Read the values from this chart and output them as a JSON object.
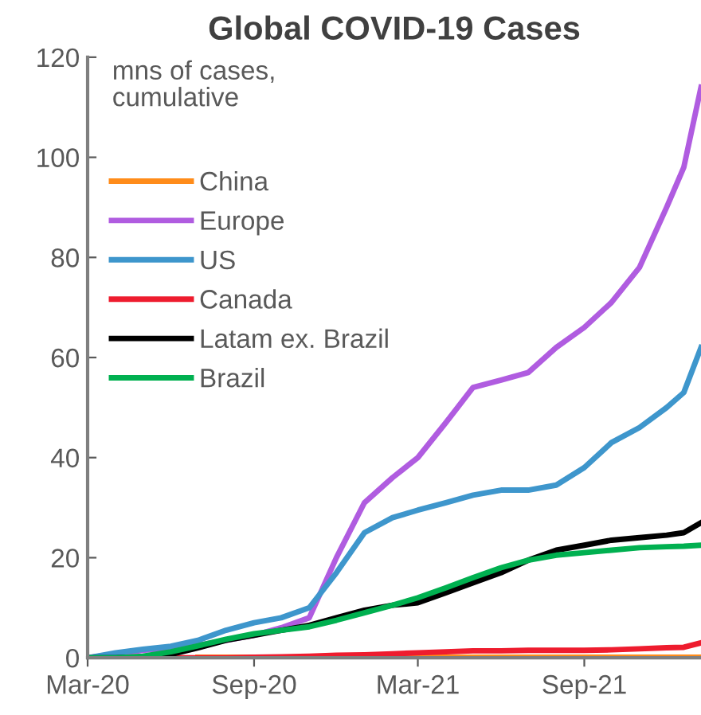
{
  "chart_data": {
    "type": "line",
    "title": "Global COVID-19 Cases",
    "ylabel": "mns of cases,\ncumulative",
    "x": [
      "2020-03-01",
      "2020-04-01",
      "2020-05-01",
      "2020-06-01",
      "2020-07-01",
      "2020-08-01",
      "2020-09-01",
      "2020-10-01",
      "2020-11-01",
      "2020-12-01",
      "2021-01-01",
      "2021-02-01",
      "2021-03-01",
      "2021-04-01",
      "2021-05-01",
      "2021-06-01",
      "2021-07-01",
      "2021-08-01",
      "2021-09-01",
      "2021-10-01",
      "2021-11-01",
      "2021-12-01",
      "2021-12-20",
      "2022-01-08"
    ],
    "series": [
      {
        "name": "China",
        "color": "#ff8c1a",
        "values": [
          null,
          null,
          null,
          null,
          0.1,
          0.1,
          0.1,
          0.1,
          0.1,
          0.1,
          0.1,
          0.1,
          0.1,
          0.1,
          0.1,
          0.1,
          0.1,
          0.1,
          0.1,
          0.1,
          0.1,
          0.1,
          0.1,
          0.1
        ]
      },
      {
        "name": "Europe",
        "color": "#b05ce0",
        "values": [
          0,
          0.8,
          1.5,
          2,
          2.5,
          3.5,
          4.5,
          6,
          8,
          20,
          31,
          36,
          40,
          47,
          54,
          55.5,
          57,
          62,
          66,
          71,
          78,
          90,
          98,
          114
        ]
      },
      {
        "name": "US",
        "color": "#3e96cc",
        "values": [
          0,
          1,
          1.7,
          2.3,
          3.5,
          5.5,
          7,
          8,
          10,
          17,
          25,
          28,
          29.5,
          31,
          32.5,
          33.5,
          33.5,
          34.5,
          38,
          43,
          46,
          50,
          53,
          62
        ]
      },
      {
        "name": "Canada",
        "color": "#ee1c2e",
        "values": [
          null,
          null,
          0,
          0,
          0,
          0,
          0.1,
          0.2,
          0.3,
          0.5,
          0.6,
          0.8,
          1,
          1.2,
          1.4,
          1.4,
          1.5,
          1.5,
          1.5,
          1.6,
          1.8,
          2,
          2.1,
          3
        ]
      },
      {
        "name": "Latam ex. Brazil",
        "color": "#000000",
        "values": [
          0,
          0,
          0.2,
          0.7,
          2,
          3.5,
          4.5,
          5.5,
          6.5,
          8,
          9.5,
          10.5,
          11,
          13,
          15,
          17,
          19.5,
          21.5,
          22.5,
          23.5,
          24,
          24.5,
          25,
          27
        ]
      },
      {
        "name": "Brazil",
        "color": "#00b050",
        "values": [
          0,
          0,
          0.3,
          1.2,
          2.4,
          3.7,
          4.8,
          5.5,
          6.2,
          7.5,
          9,
          10.5,
          12,
          14,
          16,
          18,
          19.5,
          20.5,
          21,
          21.5,
          22,
          22.2,
          22.3,
          22.5
        ]
      }
    ],
    "xlim": [
      "2020-03-01",
      "2022-01-08"
    ],
    "xticks": [
      {
        "value": "2020-03-01",
        "label": "Mar-20"
      },
      {
        "value": "2020-09-01",
        "label": "Sep-20"
      },
      {
        "value": "2021-03-01",
        "label": "Mar-21"
      },
      {
        "value": "2021-09-01",
        "label": "Sep-21"
      }
    ],
    "ylim": [
      0,
      120
    ],
    "yticks": [
      0,
      20,
      40,
      60,
      80,
      100,
      120
    ],
    "grid": false,
    "legend": "top left",
    "line_style": "solid"
  }
}
